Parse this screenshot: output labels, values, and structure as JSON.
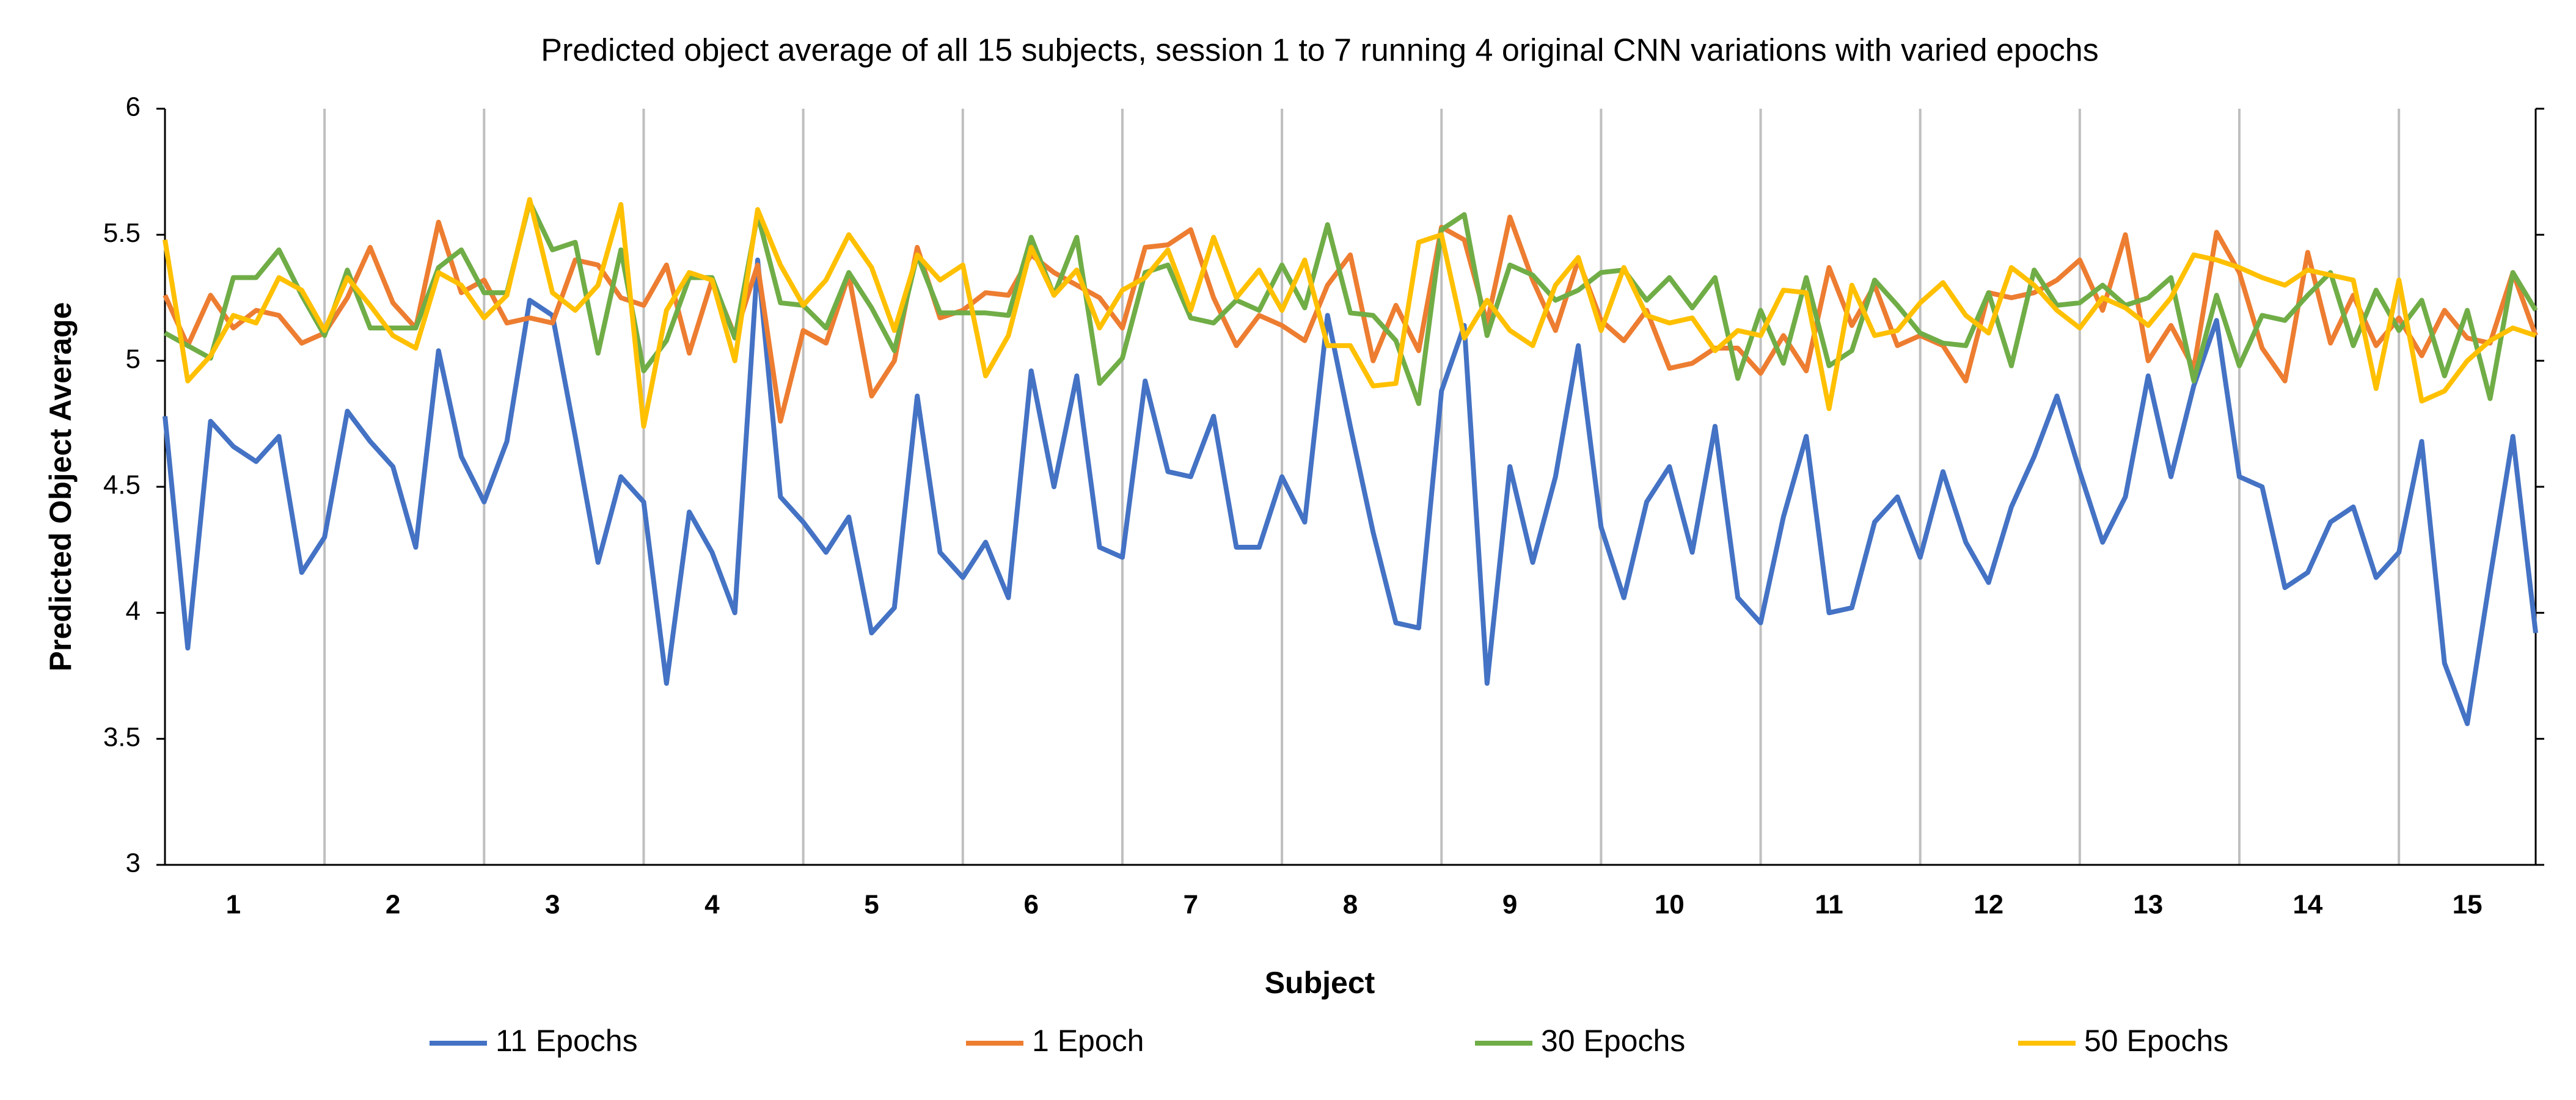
{
  "chart_data": {
    "type": "line",
    "title": "Predicted object average of all 15 subjects, session 1 to 7 running 4 original CNN variations with varied epochs",
    "x_label": "Subject",
    "y_label": "Predicted Object Average",
    "categories": [
      null,
      null,
      null,
      "1",
      null,
      null,
      null,
      null,
      null,
      null,
      "2",
      null,
      null,
      null,
      null,
      null,
      null,
      "3",
      null,
      null,
      null,
      null,
      null,
      null,
      "4",
      null,
      null,
      null,
      null,
      null,
      null,
      "5",
      null,
      null,
      null,
      null,
      null,
      null,
      "6",
      null,
      null,
      null,
      null,
      null,
      null,
      "7",
      null,
      null,
      null,
      null,
      null,
      null,
      "8",
      null,
      null,
      null,
      null,
      null,
      null,
      "9",
      null,
      null,
      null,
      null,
      null,
      null,
      "10",
      null,
      null,
      null,
      null,
      null,
      null,
      "11",
      null,
      null,
      null,
      null,
      null,
      null,
      "12",
      null,
      null,
      null,
      null,
      null,
      null,
      "13",
      null,
      null,
      null,
      null,
      null,
      null,
      "14",
      null,
      null,
      null,
      null,
      null,
      null,
      "15",
      null,
      null,
      null
    ],
    "ylim": [
      3,
      6
    ],
    "yticks": [
      3,
      3.5,
      4,
      4.5,
      5,
      5.5,
      6
    ],
    "xgrid": true,
    "legend": "bottom",
    "series": [
      {
        "name": "11 Epochs",
        "color": "#4472c4",
        "values": [
          4.78,
          3.86,
          4.76,
          4.66,
          4.6,
          4.7,
          4.16,
          4.3,
          4.8,
          4.68,
          4.58,
          4.26,
          5.04,
          4.62,
          4.44,
          4.68,
          5.24,
          5.18,
          4.7,
          4.2,
          4.54,
          4.44,
          3.72,
          4.4,
          4.24,
          4.0,
          5.4,
          4.46,
          4.36,
          4.24,
          4.38,
          3.92,
          4.02,
          4.86,
          4.24,
          4.14,
          4.28,
          4.06,
          4.96,
          4.5,
          4.94,
          4.26,
          4.22,
          4.92,
          4.56,
          4.54,
          4.78,
          4.26,
          4.26,
          4.54,
          4.36,
          5.18,
          4.74,
          4.32,
          3.96,
          3.94,
          4.88,
          5.14,
          3.72,
          4.58,
          4.2,
          4.54,
          5.06,
          4.34,
          4.06,
          4.44,
          4.58,
          4.24,
          4.74,
          4.06,
          3.96,
          4.38,
          4.7,
          4.0,
          4.02,
          4.36,
          4.46,
          4.22,
          4.56,
          4.28,
          4.12,
          4.42,
          4.62,
          4.86,
          4.56,
          4.28,
          4.46,
          4.94,
          4.54,
          4.9,
          5.16,
          4.54,
          4.5,
          4.1,
          4.16,
          4.36,
          4.42,
          4.14,
          4.24,
          4.68,
          3.8,
          3.56,
          4.14,
          4.7,
          3.92
        ]
      },
      {
        "name": "1 Epoch",
        "color": "#ed7d31",
        "values": [
          5.26,
          5.06,
          5.26,
          5.13,
          5.2,
          5.18,
          5.07,
          5.11,
          5.25,
          5.45,
          5.23,
          5.13,
          5.55,
          5.27,
          5.32,
          5.15,
          5.17,
          5.15,
          5.4,
          5.38,
          5.25,
          5.22,
          5.38,
          5.03,
          5.32,
          5.1,
          5.38,
          4.76,
          5.12,
          5.07,
          5.34,
          4.86,
          5.0,
          5.45,
          5.17,
          5.2,
          5.27,
          5.26,
          5.42,
          5.35,
          5.3,
          5.25,
          5.13,
          5.45,
          5.46,
          5.52,
          5.25,
          5.06,
          5.18,
          5.14,
          5.08,
          5.3,
          5.42,
          5.0,
          5.22,
          5.04,
          5.53,
          5.48,
          5.15,
          5.57,
          5.32,
          5.12,
          5.4,
          5.16,
          5.08,
          5.2,
          4.97,
          4.99,
          5.05,
          5.05,
          4.95,
          5.1,
          4.96,
          5.37,
          5.14,
          5.3,
          5.06,
          5.1,
          5.06,
          4.92,
          5.27,
          5.25,
          5.27,
          5.32,
          5.4,
          5.2,
          5.5,
          5.0,
          5.14,
          4.97,
          5.51,
          5.35,
          5.05,
          4.92,
          5.43,
          5.07,
          5.26,
          5.06,
          5.17,
          5.02,
          5.2,
          5.09,
          5.07,
          5.35,
          5.1
        ]
      },
      {
        "name": "30 Epochs",
        "color": "#70ad47",
        "values": [
          5.11,
          5.06,
          5.01,
          5.33,
          5.33,
          5.44,
          5.26,
          5.1,
          5.36,
          5.13,
          5.13,
          5.13,
          5.37,
          5.44,
          5.27,
          5.27,
          5.63,
          5.44,
          5.47,
          5.03,
          5.44,
          4.96,
          5.08,
          5.33,
          5.33,
          5.09,
          5.58,
          5.23,
          5.22,
          5.13,
          5.35,
          5.21,
          5.04,
          5.42,
          5.19,
          5.19,
          5.19,
          5.18,
          5.49,
          5.26,
          5.49,
          4.91,
          5.01,
          5.35,
          5.38,
          5.17,
          5.15,
          5.24,
          5.2,
          5.38,
          5.21,
          5.54,
          5.19,
          5.18,
          5.08,
          4.83,
          5.52,
          5.58,
          5.1,
          5.38,
          5.34,
          5.24,
          5.28,
          5.35,
          5.36,
          5.24,
          5.33,
          5.21,
          5.33,
          4.93,
          5.2,
          4.99,
          5.33,
          4.98,
          5.04,
          5.32,
          5.22,
          5.11,
          5.07,
          5.06,
          5.27,
          4.98,
          5.36,
          5.22,
          5.23,
          5.3,
          5.22,
          5.25,
          5.33,
          4.92,
          5.26,
          4.98,
          5.18,
          5.16,
          5.26,
          5.35,
          5.06,
          5.28,
          5.12,
          5.24,
          4.94,
          5.2,
          4.85,
          5.35,
          5.2
        ]
      },
      {
        "name": "50 Epochs",
        "color": "#ffc000",
        "values": [
          5.48,
          4.92,
          5.02,
          5.18,
          5.15,
          5.33,
          5.28,
          5.12,
          5.33,
          5.22,
          5.1,
          5.05,
          5.35,
          5.3,
          5.17,
          5.26,
          5.64,
          5.27,
          5.2,
          5.3,
          5.62,
          4.74,
          5.2,
          5.35,
          5.32,
          5.0,
          5.6,
          5.38,
          5.22,
          5.32,
          5.5,
          5.37,
          5.12,
          5.42,
          5.32,
          5.38,
          4.94,
          5.1,
          5.45,
          5.26,
          5.36,
          5.13,
          5.28,
          5.33,
          5.44,
          5.2,
          5.49,
          5.25,
          5.36,
          5.2,
          5.4,
          5.06,
          5.06,
          4.9,
          4.91,
          5.47,
          5.5,
          5.09,
          5.24,
          5.12,
          5.06,
          5.3,
          5.41,
          5.12,
          5.37,
          5.18,
          5.15,
          5.17,
          5.04,
          5.12,
          5.1,
          5.28,
          5.27,
          4.81,
          5.3,
          5.1,
          5.12,
          5.23,
          5.31,
          5.18,
          5.11,
          5.37,
          5.3,
          5.2,
          5.13,
          5.25,
          5.21,
          5.14,
          5.25,
          5.42,
          5.4,
          5.37,
          5.33,
          5.3,
          5.36,
          5.34,
          5.32,
          4.89,
          5.32,
          4.84,
          4.88,
          5.0,
          5.08,
          5.13,
          5.1
        ]
      }
    ]
  }
}
